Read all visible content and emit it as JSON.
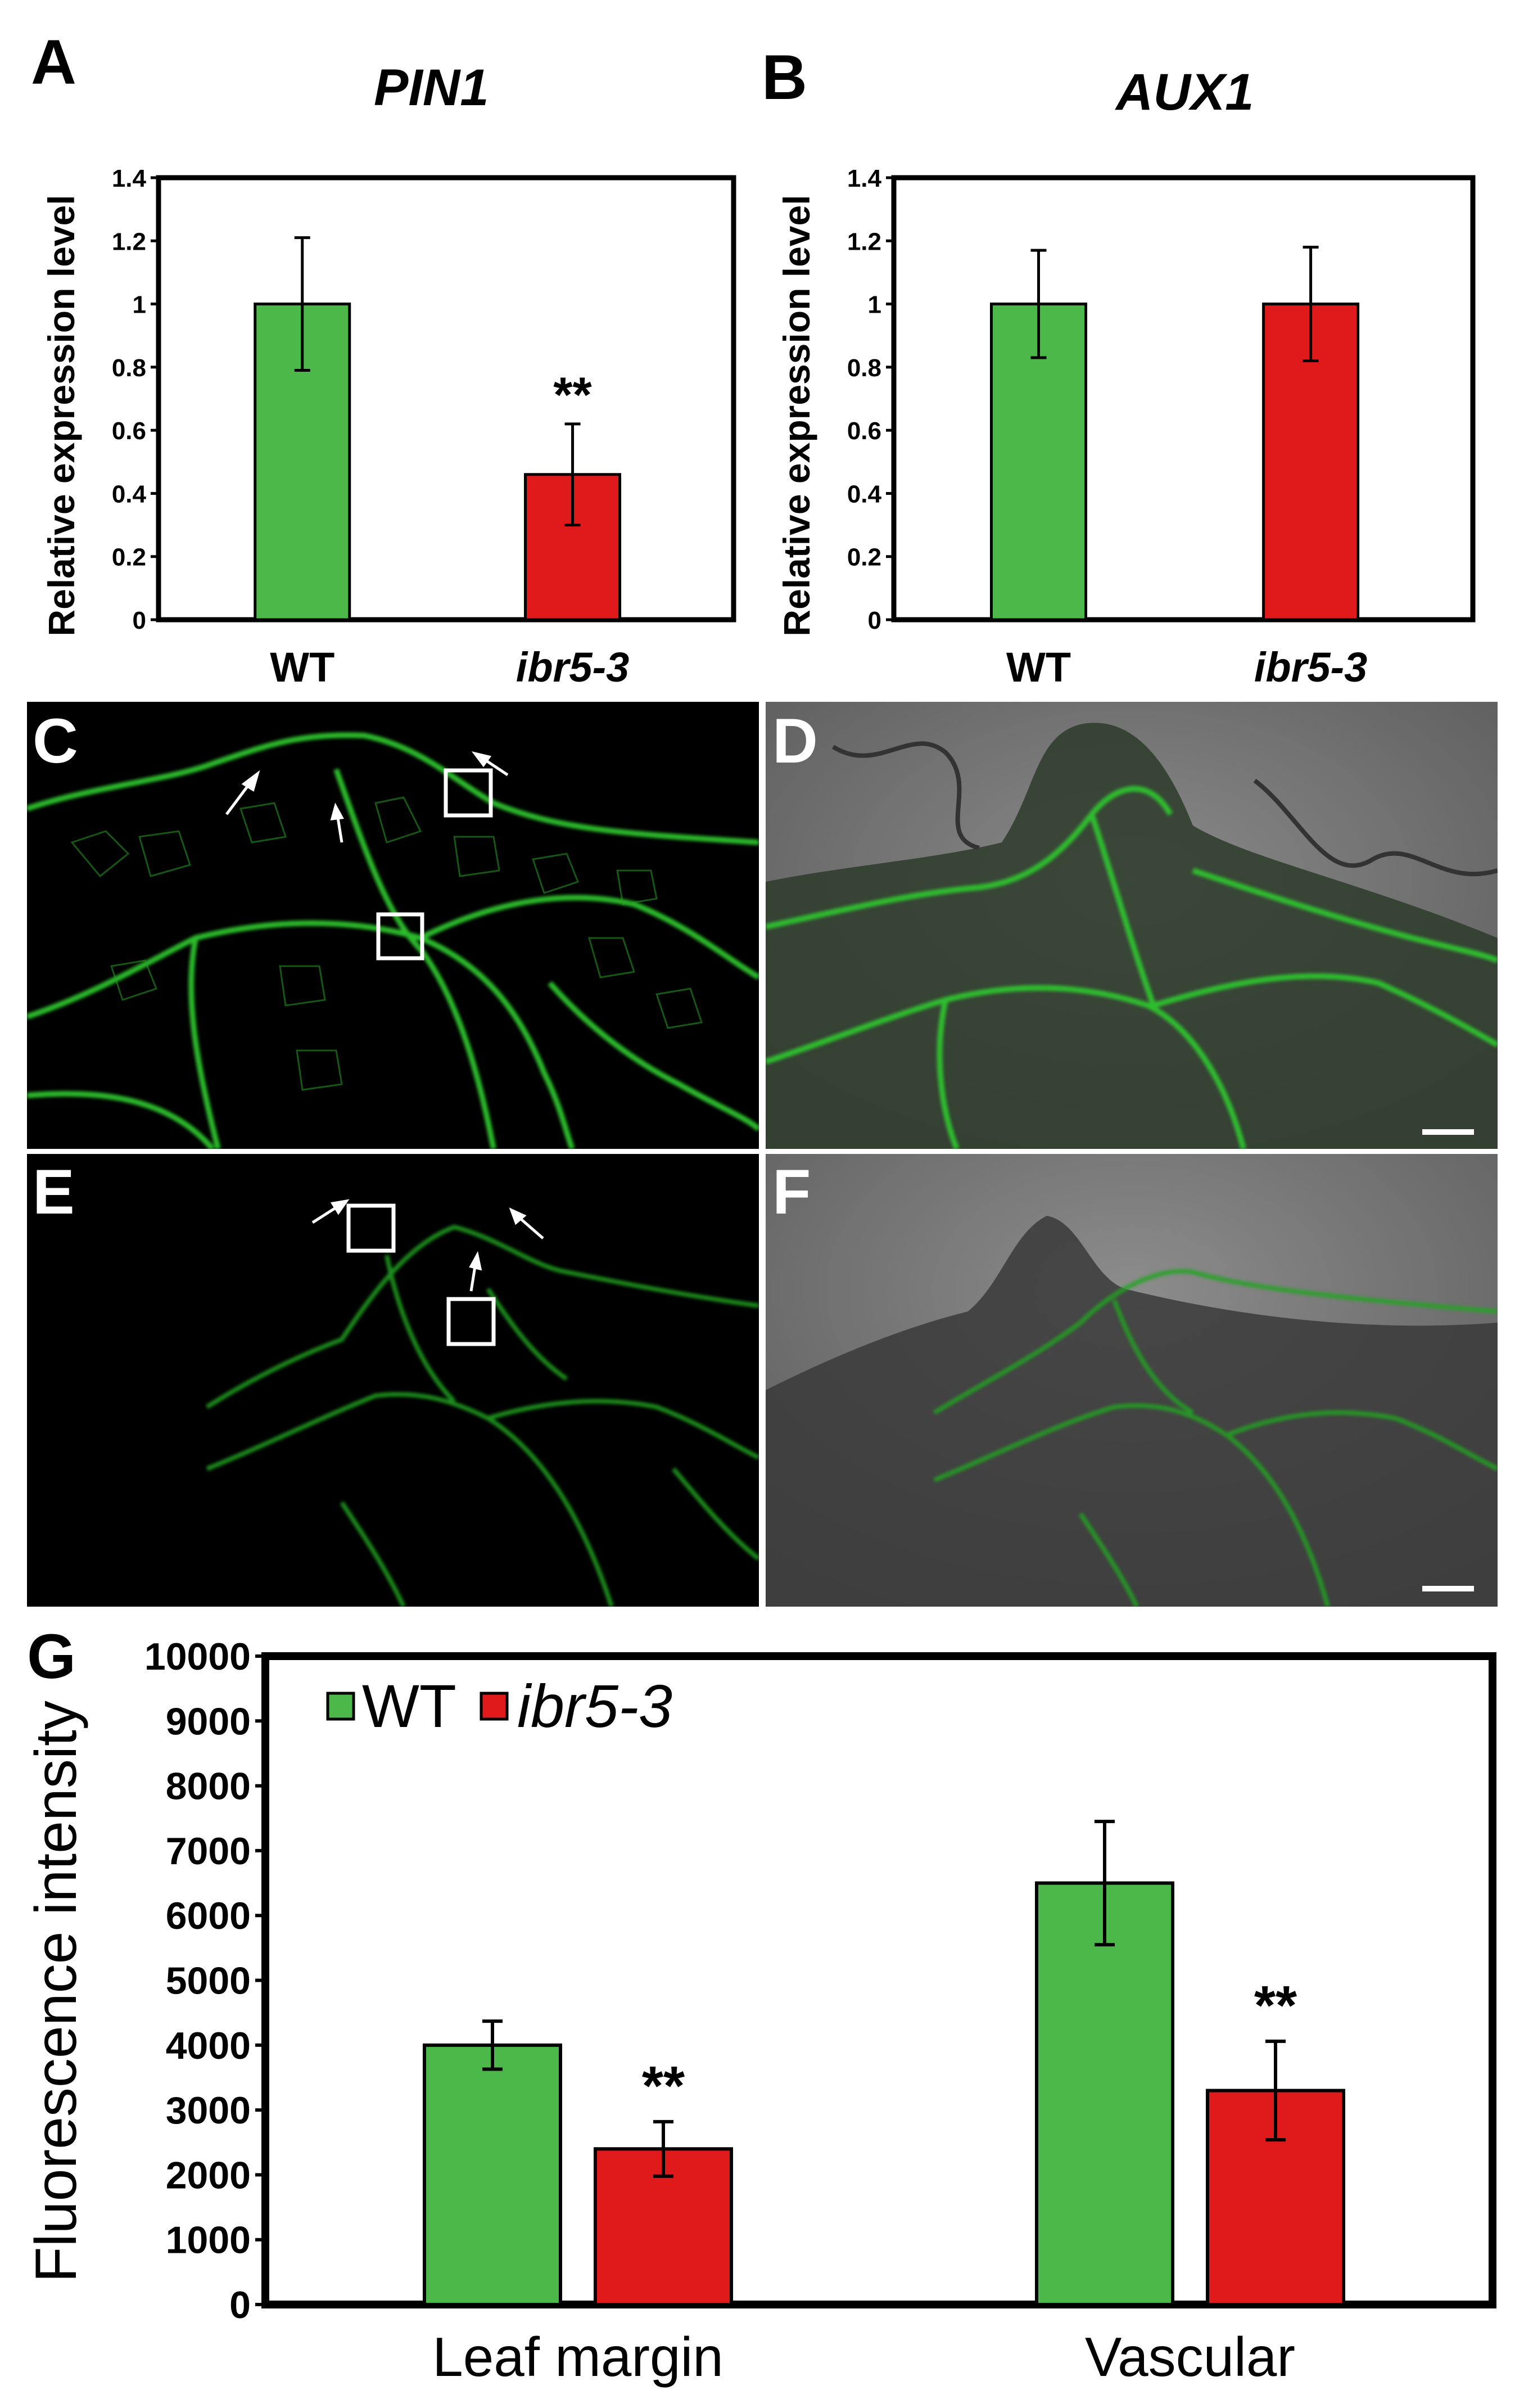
{
  "panels": {
    "A": "A",
    "B": "B",
    "C": "C",
    "D": "D",
    "E": "E",
    "F": "F",
    "G": "G"
  },
  "chart_data": [
    {
      "type": "bar",
      "panel": "A",
      "title": "PIN1",
      "xlabel": "",
      "ylabel": "Relative expression level",
      "categories": [
        "WT",
        "ibr5-3"
      ],
      "values": [
        1.0,
        0.46
      ],
      "errors": [
        0.21,
        0.16
      ],
      "colors": [
        "#4cb849",
        "#e01a1a"
      ],
      "significance": [
        "",
        "**"
      ],
      "ylim": [
        0,
        1.4
      ],
      "yticks": [
        0,
        0.2,
        0.4,
        0.6,
        0.8,
        1,
        1.2,
        1.4
      ],
      "grid": false
    },
    {
      "type": "bar",
      "panel": "B",
      "title": "AUX1",
      "xlabel": "",
      "ylabel": "Relative expression level",
      "categories": [
        "WT",
        "ibr5-3"
      ],
      "values": [
        1.0,
        1.0
      ],
      "errors": [
        0.17,
        0.18
      ],
      "colors": [
        "#4cb849",
        "#e01a1a"
      ],
      "significance": [
        "",
        ""
      ],
      "ylim": [
        0,
        1.4
      ],
      "yticks": [
        0,
        0.2,
        0.4,
        0.6,
        0.8,
        1,
        1.2,
        1.4
      ],
      "grid": false
    },
    {
      "type": "bar",
      "panel": "G",
      "title": "",
      "xlabel": "",
      "ylabel": "Fluorescence intensity",
      "categories": [
        "Leaf margin",
        "Vascular"
      ],
      "series": [
        {
          "name": "WT",
          "values": [
            4000,
            6500
          ],
          "errors": [
            370,
            950
          ],
          "color": "#4cb849",
          "significance": [
            "",
            ""
          ]
        },
        {
          "name": "ibr5-3",
          "values": [
            2400,
            3300
          ],
          "errors": [
            420,
            760
          ],
          "color": "#e01a1a",
          "significance": [
            "**",
            "**"
          ]
        }
      ],
      "ylim": [
        0,
        10000
      ],
      "yticks": [
        0,
        1000,
        2000,
        3000,
        4000,
        5000,
        6000,
        7000,
        8000,
        9000,
        10000
      ],
      "legend_position": "top-left",
      "grid": false
    }
  ]
}
